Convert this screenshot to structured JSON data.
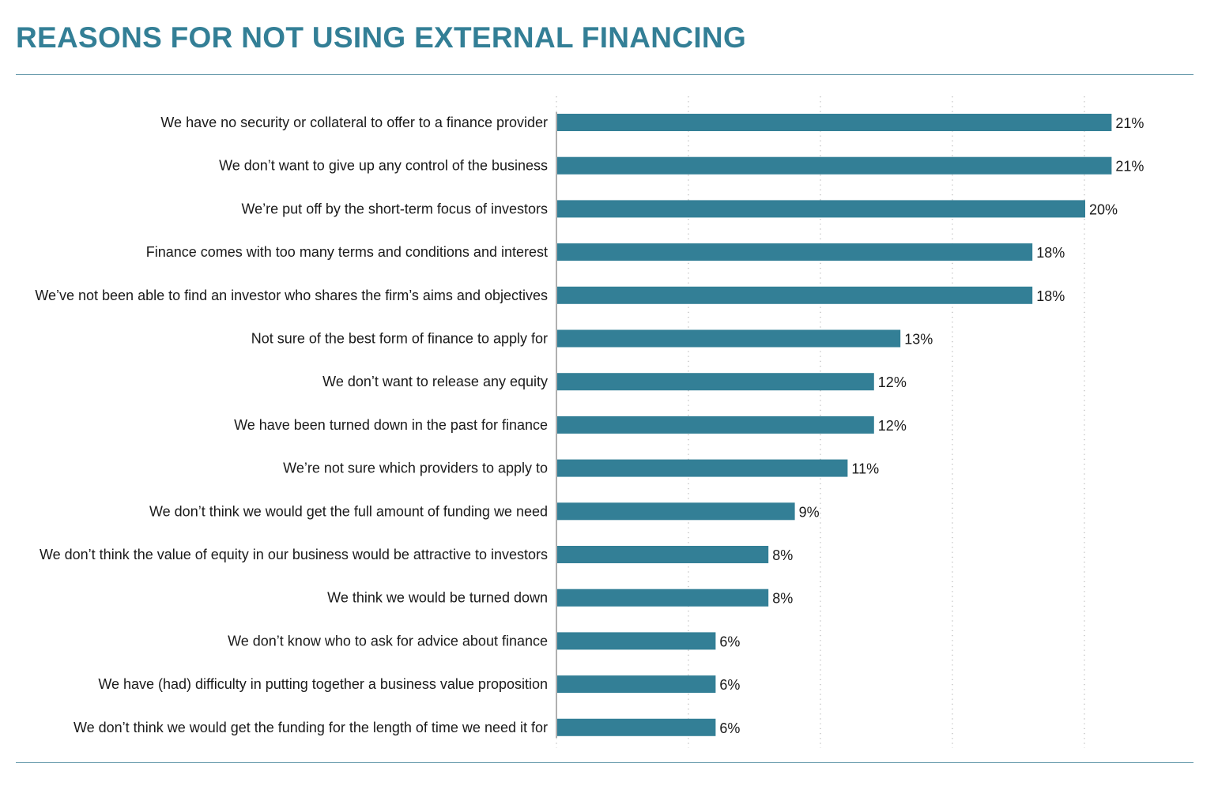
{
  "colors": {
    "bar": "#337f96",
    "title": "#337f96",
    "rule": "#5f95a7",
    "label": "#1a1a1a",
    "grid": "#b5b5b5",
    "axis": "#b0b0b0"
  },
  "chart_data": {
    "type": "bar",
    "orientation": "horizontal",
    "title": "REASONS FOR NOT USING EXTERNAL FINANCING",
    "value_suffix": "%",
    "xlim": [
      0,
      25
    ],
    "grid": "vertical dotted",
    "categories": [
      "We have no security or collateral to offer to a finance provider",
      "We don’t want to give up any control of the business",
      "We’re put off by the short-term focus of investors",
      "Finance comes with too many terms and conditions and interest",
      "We’ve not been able to find an investor who shares the firm’s aims and objectives",
      "Not sure of the best form of finance to apply for",
      "We don’t want to release any equity",
      "We have been turned down in the past for finance",
      "We’re not sure which providers to apply to",
      "We don’t think we would get the full amount of funding we need",
      "We don’t think the value of equity in our business would be attractive to investors",
      "We think we would be turned down",
      "We don’t know who to ask for advice about finance",
      "We have (had) difficulty in putting together a business value proposition",
      "We don’t think we would get the funding for the length of time we need it for"
    ],
    "values": [
      21,
      21,
      20,
      18,
      18,
      13,
      12,
      12,
      11,
      9,
      8,
      8,
      6,
      6,
      6
    ],
    "value_labels": [
      "21%",
      "21%",
      "20%",
      "18%",
      "18%",
      "13%",
      "12%",
      "12%",
      "11%",
      "9%",
      "8%",
      "8%",
      "6%",
      "6%",
      "6%"
    ]
  }
}
